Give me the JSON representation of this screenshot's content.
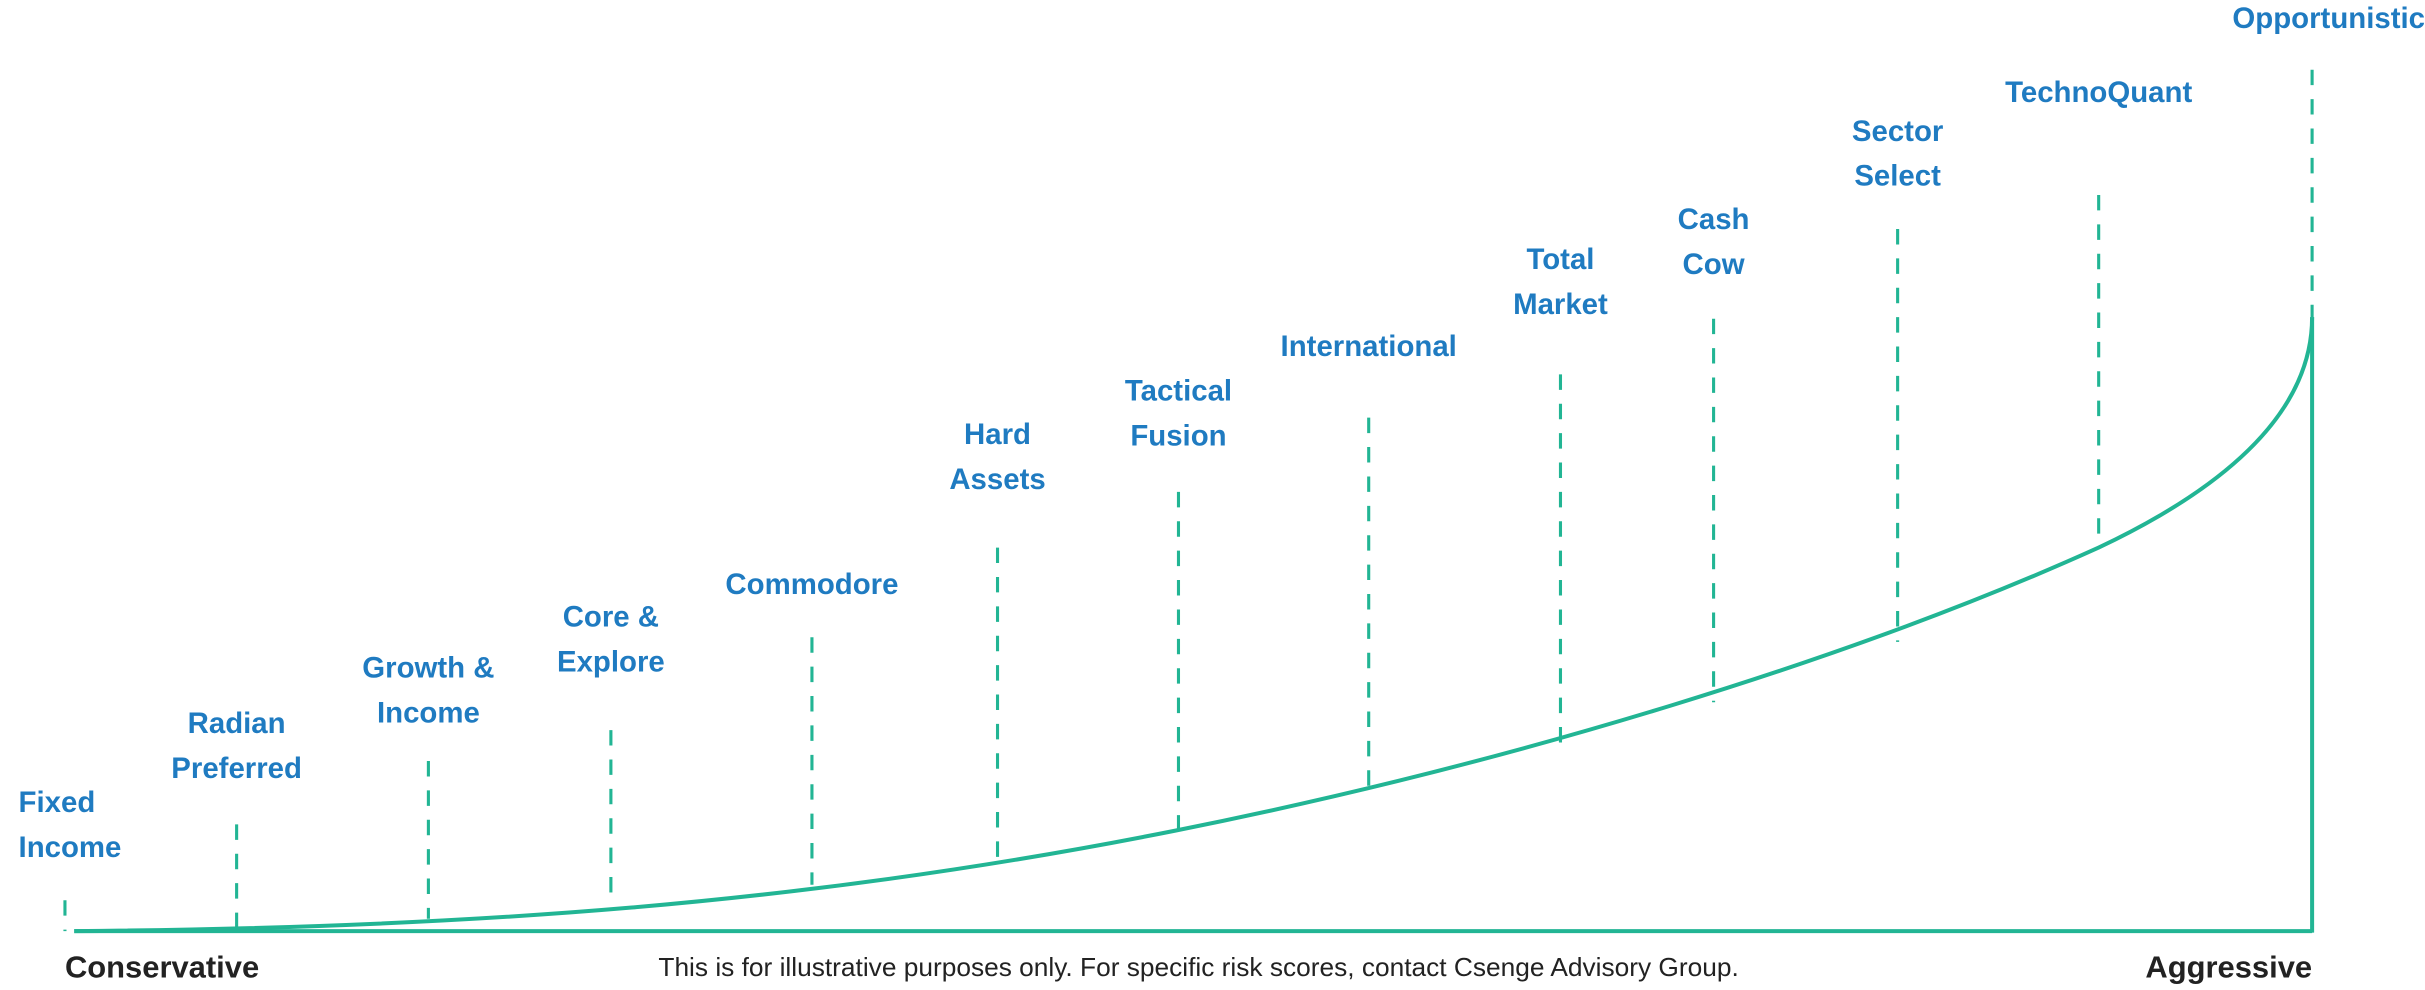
{
  "colors": {
    "label": "#1f7bc1",
    "line": "#22b594",
    "axis_text": "#222222"
  },
  "strategies": [
    {
      "lines": [
        "Fixed",
        "Income"
      ]
    },
    {
      "lines": [
        "Radian",
        "Preferred"
      ]
    },
    {
      "lines": [
        "Growth &",
        "Income"
      ]
    },
    {
      "lines": [
        "Core &",
        "Explore"
      ]
    },
    {
      "lines": [
        "Commodore"
      ]
    },
    {
      "lines": [
        "Hard",
        "Assets"
      ]
    },
    {
      "lines": [
        "Tactical",
        "Fusion"
      ]
    },
    {
      "lines": [
        "International"
      ]
    },
    {
      "lines": [
        "Total",
        "Market"
      ]
    },
    {
      "lines": [
        "Cash",
        "Cow"
      ]
    },
    {
      "lines": [
        "Sector",
        "Select"
      ]
    },
    {
      "lines": [
        "TechnoQuant"
      ]
    },
    {
      "lines": [
        "Opportunistic"
      ]
    }
  ],
  "axis": {
    "left_label": "Conservative",
    "right_label": "Aggressive"
  },
  "disclaimer": "This is for illustrative purposes only. For specific risk scores, contact Csenge Advisory Group."
}
